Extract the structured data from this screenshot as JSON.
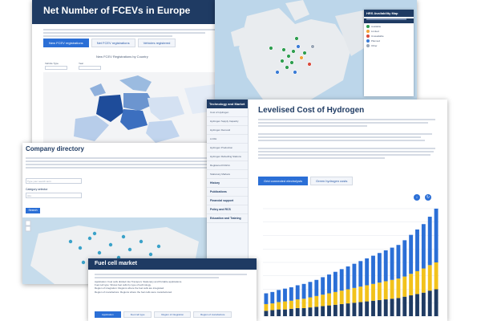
{
  "fcev": {
    "title": "Net Number of FCEVs in Europe",
    "tabs": [
      {
        "label": "New FCEV registrations",
        "active": true
      },
      {
        "label": "Net FCEV registrations",
        "active": false
      },
      {
        "label": "Vehicles registered",
        "active": false
      }
    ],
    "chart_title": "New FCEV Registrations by Country",
    "filters": [
      {
        "label": "Vehicle Type"
      },
      {
        "label": "Year"
      }
    ]
  },
  "hrs": {
    "title": "HRS Availability Map",
    "legend": [
      {
        "label": "Available",
        "color": "#2e9e4f"
      },
      {
        "label": "Limited",
        "color": "#f2a33a"
      },
      {
        "label": "Unavailable",
        "color": "#d94b3d"
      },
      {
        "label": "Planned",
        "color": "#3a7bd5"
      },
      {
        "label": "Other",
        "color": "#9aa6b6"
      }
    ]
  },
  "lcoh": {
    "title": "Levelised Cost of Hydrogen",
    "sidebar": {
      "header": "Technology and Market",
      "items": [
        {
          "label": "Cost of Hydrogen"
        },
        {
          "label": "Hydrogen Supply Capacity"
        },
        {
          "label": "Hydrogen Demand"
        },
        {
          "label": "LCOH"
        },
        {
          "label": "Hydrogen Production"
        },
        {
          "label": "Hydrogen Refuelling Stations"
        },
        {
          "label": "Registered FCEVs"
        },
        {
          "label": "Stationary Markets"
        }
      ],
      "sections": [
        {
          "label": "History"
        },
        {
          "label": "Publications"
        },
        {
          "label": "Financial support"
        },
        {
          "label": "Policy and RCS"
        },
        {
          "label": "Education and Training"
        }
      ]
    },
    "tabs": [
      {
        "label": "Grid connected electrolysis",
        "active": true
      },
      {
        "label": "Green hydrogen costs",
        "active": false
      }
    ],
    "icons": [
      "download-icon",
      "share-icon"
    ]
  },
  "company": {
    "title": "Company directory",
    "search_placeholder": "Type your search term",
    "category_label": "Category selector",
    "category_value": "ALL",
    "search_button": "Search"
  },
  "fuel": {
    "title": "Fuel cell market",
    "bullets": [
      "Application: Fuel cells divided into Transport, Stationary and Portable applications.",
      "Fuel cell type: Shows fuel cells by type of technology.",
      "Region of integration: Regions where the fuel cells are integrated.",
      "Region of manufacture: Regions where the fuel cells were manufactured."
    ],
    "tabs": [
      {
        "label": "Application",
        "active": true
      },
      {
        "label": "Fuel cell type",
        "active": false
      },
      {
        "label": "Region of integration",
        "active": false
      },
      {
        "label": "Region of manufacture",
        "active": false
      }
    ]
  },
  "chart_data": {
    "type": "bar",
    "series": [
      {
        "values": [
          0.4,
          0.45,
          0.5,
          0.5,
          0.55,
          0.6,
          0.6,
          0.65,
          0.7,
          0.75,
          0.8,
          0.85,
          0.9,
          0.95,
          1.0,
          1.05,
          1.1,
          1.15,
          1.2,
          1.25,
          1.3,
          1.35,
          1.45,
          1.55,
          1.65,
          1.75,
          1.9,
          2.0
        ],
        "color": "#1f3b63"
      },
      {
        "values": [
          0.5,
          0.5,
          0.55,
          0.6,
          0.6,
          0.65,
          0.7,
          0.75,
          0.8,
          0.85,
          0.9,
          0.95,
          1.0,
          1.05,
          1.1,
          1.15,
          1.2,
          1.25,
          1.3,
          1.35,
          1.4,
          1.45,
          1.5,
          1.6,
          1.7,
          1.8,
          1.9,
          2.0
        ],
        "color": "#f2c21b"
      },
      {
        "values": [
          0.8,
          0.85,
          0.9,
          0.95,
          1.0,
          1.05,
          1.1,
          1.15,
          1.2,
          1.3,
          1.4,
          1.5,
          1.6,
          1.7,
          1.8,
          1.9,
          2.0,
          2.1,
          2.2,
          2.3,
          2.4,
          2.5,
          2.7,
          2.9,
          3.1,
          3.3,
          3.6,
          4.0
        ],
        "color": "#2b6fd6"
      }
    ],
    "ylim": [
      0,
      8
    ]
  }
}
